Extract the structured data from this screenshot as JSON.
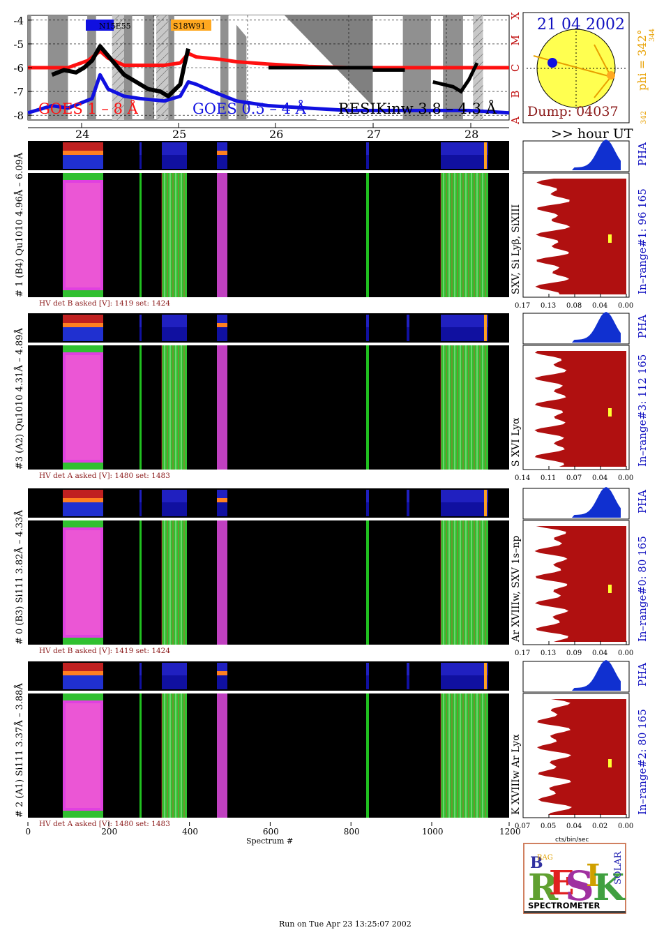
{
  "goes": {
    "yticks": [
      "-4",
      "-5",
      "-6",
      "-7",
      "-8"
    ],
    "class_labels": [
      "X",
      "M",
      "C",
      "B",
      "A"
    ],
    "label_long": "GOES 1 – 8 Å",
    "label_short": "GOES 0.5 – 4 Å",
    "label_resik": "RESIKinw 3.8 – 4.3 Å",
    "region_blue": "N15E55",
    "region_orange": "S18W91",
    "colors": {
      "long": "#ff1010",
      "short": "#1010e0",
      "resik": "#000000",
      "night": "#909090",
      "saa": "#c0c0c0"
    }
  },
  "sun": {
    "date": "21 04 2002",
    "dump": "Dump: 04037",
    "phi": "phi = 342°",
    "phi_sub": "344",
    "phi_bottom": "342"
  },
  "hour_axis": {
    "ticks": [
      "24",
      "25",
      "26",
      "27",
      "28"
    ],
    "label": ">> hour UT"
  },
  "panels": [
    {
      "side_label": "# 1 (B4) Qu1010 4.96Å – 6.09Å",
      "line_label": "SXV, Si Lyβ, SiXIII",
      "range_label": "In–range#1:   96 165",
      "hv": "HV det B asked [V]:  1419 set:  1424",
      "xticks": [
        "0.17",
        "0.13",
        "0.08",
        "0.04",
        "0.00"
      ]
    },
    {
      "side_label": "#3 (A2) Qu1010  4.31Å  – 4.89Å",
      "line_label": "S XVI Lyα",
      "range_label": "In–range#3:   112 165",
      "hv": "HV det A asked [V]:  1480 set:  1483",
      "xticks": [
        "0.14",
        "0.11",
        "0.07",
        "0.04",
        "0.00"
      ]
    },
    {
      "side_label": "# 0 (B3) Si111  3.82Å – 4.33Å",
      "line_label": "Ar XVIIIw,  SXV 1s–np",
      "range_label": "In–range#0:   80 165",
      "hv": "HV det B asked [V]:  1419 set:  1424",
      "xticks": [
        "0.17",
        "0.13",
        "0.09",
        "0.04",
        "0.00"
      ]
    },
    {
      "side_label": "# 2 (A1) Si111  3.37Å – 3.88Å",
      "line_label": "K XVIIIw  Ar Lyα",
      "range_label": "In–range#2:   80 165",
      "hv": "HV det A asked [V]:  1480 set:  1483",
      "xticks": [
        "0.07",
        "0.05",
        "0.04",
        "0.02",
        "0.00"
      ]
    }
  ],
  "pha_label": "PHA",
  "spectrum_axis": {
    "ticks": [
      "0",
      "200",
      "400",
      "600",
      "800",
      "1000",
      "1200"
    ],
    "label": "Spectrum #"
  },
  "cts_label": "cts/bin/sec",
  "logo": {
    "title": "SPECTROMETER",
    "letters": "RESIK",
    "bragg": "BRAGG",
    "solar": "SOLAR"
  },
  "footer": "Run on Tue Apr 23 13:25:07 2002",
  "chart_data": {
    "type": "line",
    "title": "",
    "xlabel": "Spectrum #",
    "ylabel": "",
    "x_range": [
      0,
      1200
    ],
    "y_range": [
      -8.2,
      -3.8
    ],
    "series": [
      {
        "name": "GOES 1 – 8 Å",
        "color": "#ff1010",
        "x": [
          0,
          100,
          150,
          180,
          200,
          240,
          280,
          340,
          380,
          400,
          420,
          450,
          480,
          520,
          600,
          700,
          800,
          900,
          1000,
          1050,
          1100,
          1150,
          1200
        ],
        "values": [
          -6.0,
          -6.0,
          -5.7,
          -5.3,
          -5.6,
          -5.9,
          -5.9,
          -5.9,
          -5.8,
          -5.4,
          -5.55,
          -5.6,
          -5.65,
          -5.75,
          -5.85,
          -5.95,
          -6.0,
          -6.0,
          -6.0,
          -6.0,
          -6.0,
          -6.0,
          -6.0
        ]
      },
      {
        "name": "GOES 0.5 – 4 Å",
        "color": "#1010e0",
        "x": [
          0,
          60,
          100,
          130,
          160,
          180,
          200,
          240,
          280,
          340,
          380,
          400,
          420,
          460,
          520,
          600,
          700,
          800,
          900,
          1000,
          1100,
          1200
        ],
        "values": [
          -7.9,
          -7.6,
          -7.7,
          -7.5,
          -7.3,
          -6.3,
          -6.9,
          -7.2,
          -7.3,
          -7.4,
          -7.2,
          -6.6,
          -6.7,
          -7.0,
          -7.4,
          -7.6,
          -7.7,
          -7.8,
          -7.8,
          -7.8,
          -7.8,
          -7.9
        ]
      },
      {
        "name": "RESIKinw 3.8 – 4.3 Å",
        "color": "#000000",
        "x": [
          60,
          90,
          120,
          140,
          160,
          180,
          200,
          240,
          270,
          300,
          330,
          350,
          380,
          390,
          400
        ],
        "values": [
          -6.3,
          -6.1,
          -6.2,
          -6.0,
          -5.7,
          -5.1,
          -5.5,
          -6.3,
          -6.6,
          -6.9,
          -7.0,
          -7.2,
          -6.7,
          -5.9,
          -5.2
        ]
      }
    ]
  }
}
